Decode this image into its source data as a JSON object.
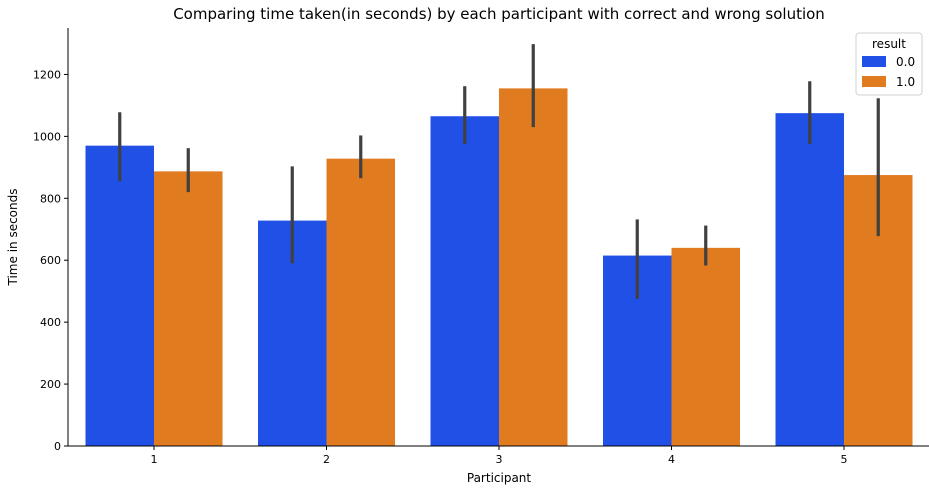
{
  "chart_data": {
    "type": "bar",
    "title": "Comparing time taken(in seconds) by each participant with correct and wrong solution",
    "xlabel": "Participant",
    "ylabel": "Time in seconds",
    "categories": [
      "1",
      "2",
      "3",
      "4",
      "5"
    ],
    "ylim": [
      0,
      1350
    ],
    "yticks": [
      0,
      200,
      400,
      600,
      800,
      1000,
      1200
    ],
    "grid": false,
    "legend": {
      "title": "result",
      "placement": "top-right"
    },
    "series": [
      {
        "name": "0.0",
        "color": "#2150e6",
        "values": [
          970,
          728,
          1065,
          615,
          1075
        ],
        "ci_low": [
          855,
          590,
          975,
          475,
          975
        ],
        "ci_high": [
          1078,
          903,
          1162,
          732,
          1178
        ]
      },
      {
        "name": "1.0",
        "color": "#e07b1f",
        "values": [
          887,
          928,
          1155,
          640,
          875
        ],
        "ci_low": [
          820,
          865,
          1030,
          583,
          678
        ],
        "ci_high": [
          962,
          1003,
          1298,
          712,
          1123
        ]
      }
    ]
  }
}
